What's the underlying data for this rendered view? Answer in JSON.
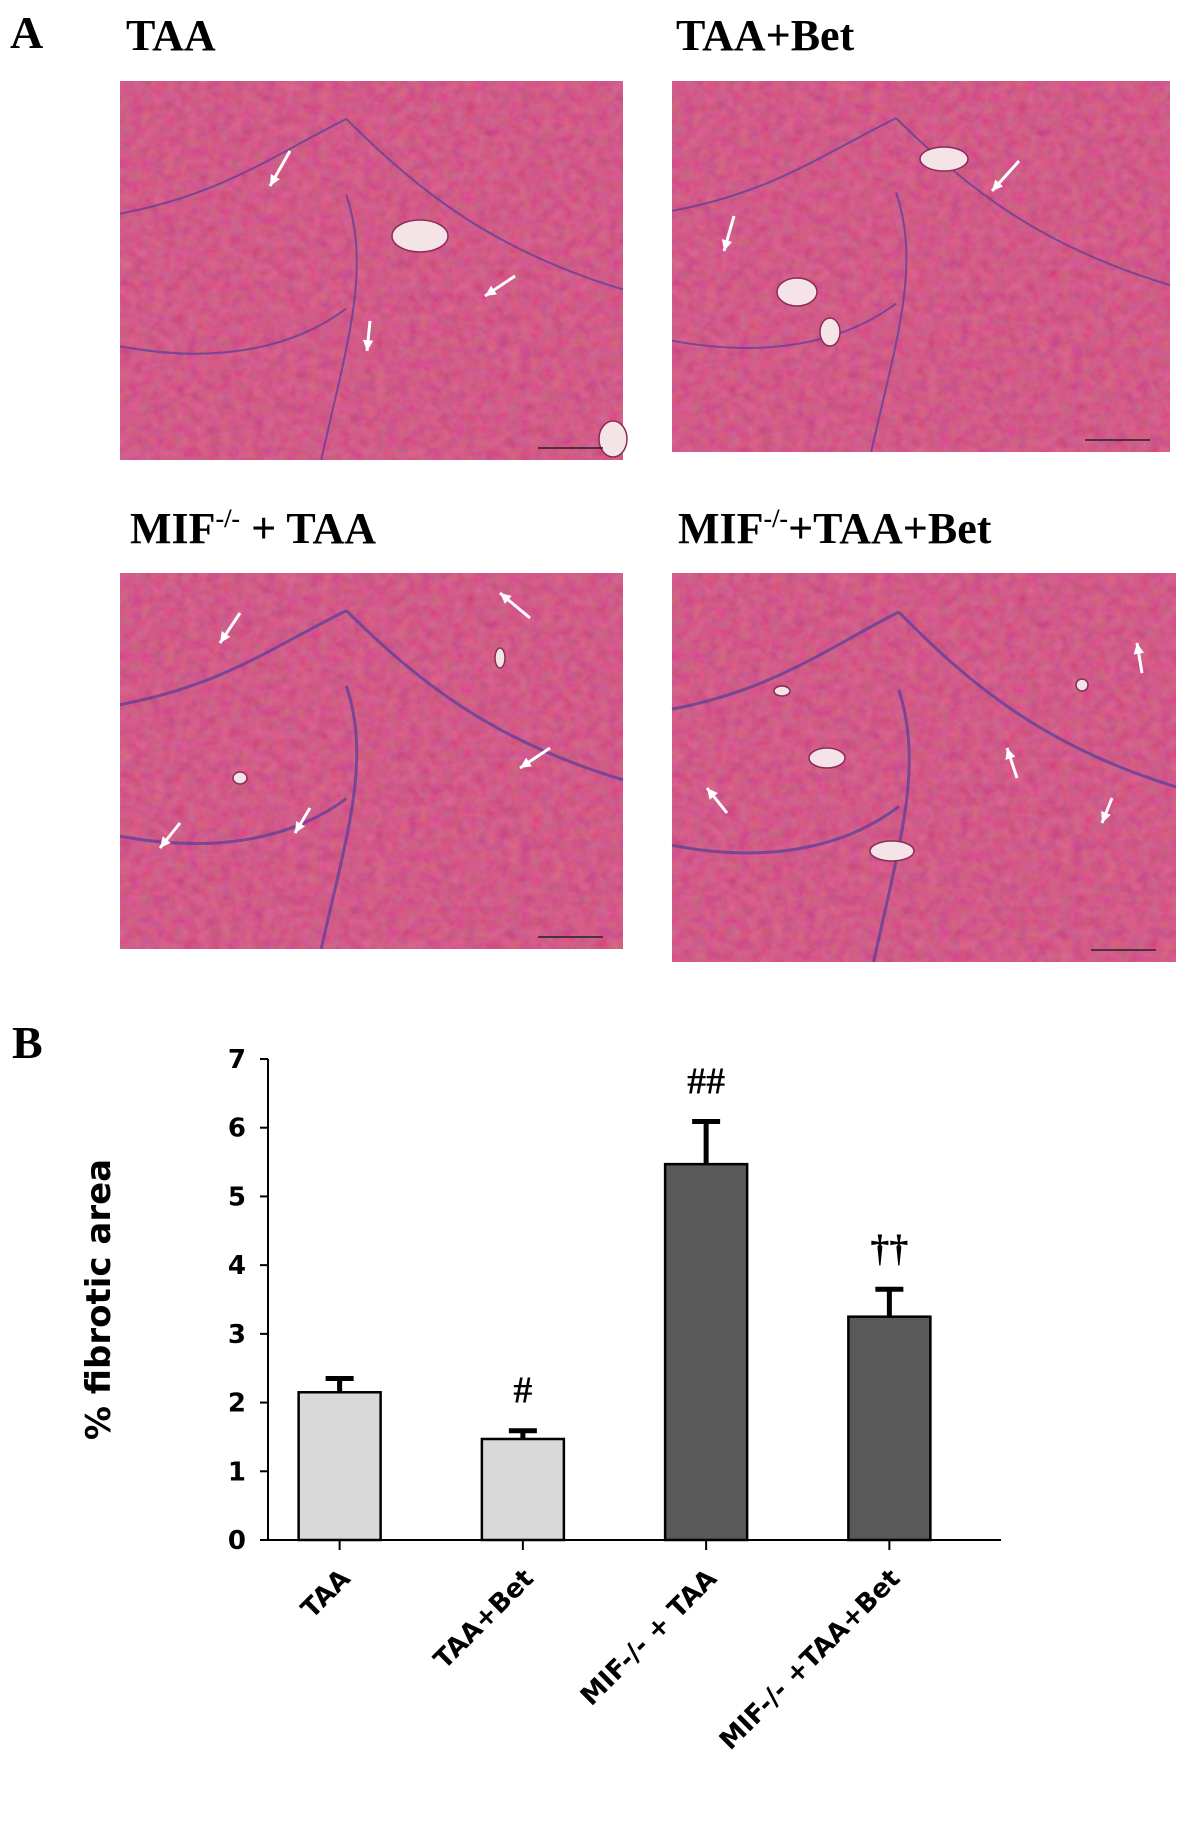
{
  "panel_a": {
    "label": "A",
    "panels": [
      {
        "title": [
          "TAA"
        ]
      },
      {
        "title": [
          "TAA+Bet"
        ]
      },
      {
        "title": [
          "MIF",
          "-/-",
          " + TAA"
        ]
      },
      {
        "title": [
          "MIF",
          "-/-",
          "+TAA+Bet"
        ]
      }
    ]
  },
  "chart_data": {
    "type": "bar",
    "panel_label": "B",
    "ylabel": "% fibrotic area",
    "categories": [
      "TAA",
      "TAA+Bet",
      "MIF-/- + TAA",
      "MIF-/- +TAA+Bet"
    ],
    "values": [
      2.15,
      1.47,
      5.47,
      3.25
    ],
    "errors": [
      0.2,
      0.12,
      0.62,
      0.4
    ],
    "annotations": [
      null,
      "#",
      "##",
      "††"
    ],
    "colors": [
      "#d9d9d9",
      "#d9d9d9",
      "#595959",
      "#595959"
    ],
    "ylim": [
      0,
      7
    ],
    "yticks": [
      0,
      1,
      2,
      3,
      4,
      5,
      6,
      7
    ]
  }
}
